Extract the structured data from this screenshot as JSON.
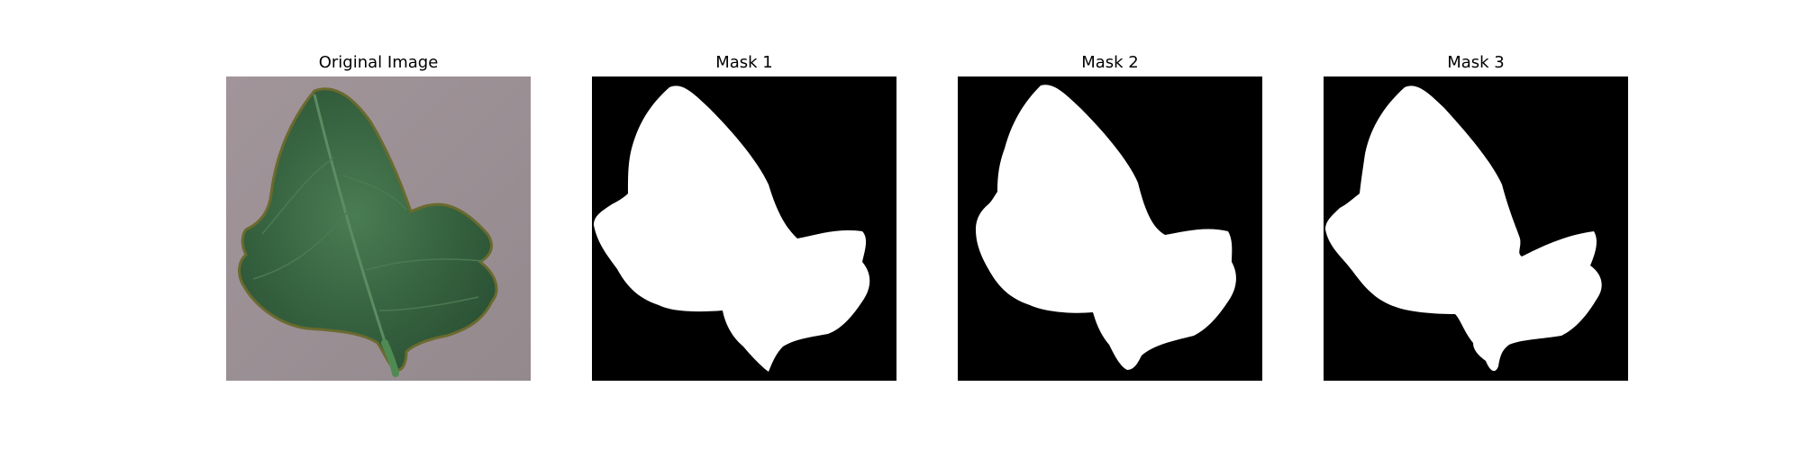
{
  "figure": {
    "panels": [
      {
        "title": "Original Image",
        "kind": "photo"
      },
      {
        "title": "Mask 1",
        "kind": "mask"
      },
      {
        "title": "Mask 2",
        "kind": "mask"
      },
      {
        "title": "Mask 3",
        "kind": "mask"
      }
    ]
  },
  "colors": {
    "background": "#ffffff",
    "photo_backdrop": "#9e9297",
    "leaf_dark": "#2d5a38",
    "leaf_mid": "#3f7049",
    "leaf_edge": "#6b6a2e",
    "stem": "#4f8a52",
    "mask_background": "#000000",
    "mask_foreground": "#ffffff"
  }
}
